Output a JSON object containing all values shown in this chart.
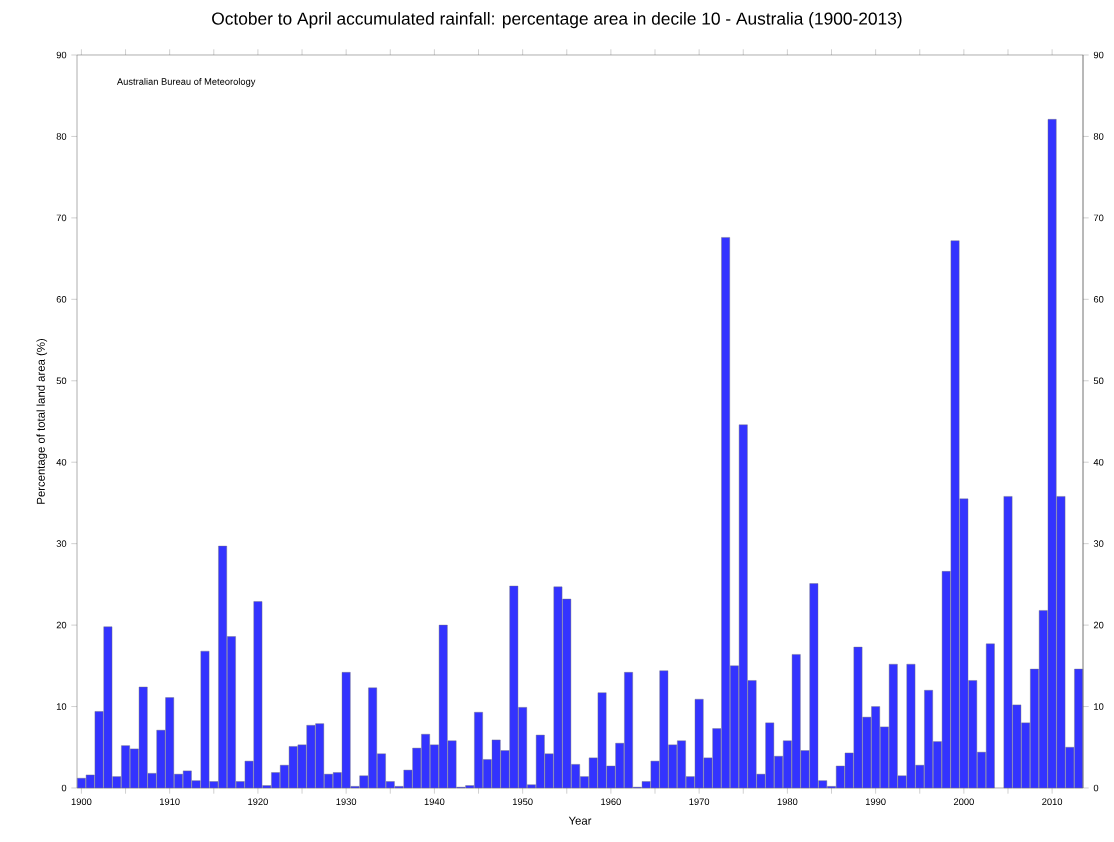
{
  "chart_data": {
    "type": "bar",
    "title": "October to April accumulated rainfall: percentage area in decile 10 - Australia (1900-2013)",
    "xlabel": "Year",
    "ylabel": "Percentage of total land area (%)",
    "annotations": [
      "Australian Bureau of Meteorology"
    ],
    "x": [
      1900,
      1901,
      1902,
      1903,
      1904,
      1905,
      1906,
      1907,
      1908,
      1909,
      1910,
      1911,
      1912,
      1913,
      1914,
      1915,
      1916,
      1917,
      1918,
      1919,
      1920,
      1921,
      1922,
      1923,
      1924,
      1925,
      1926,
      1927,
      1928,
      1929,
      1930,
      1931,
      1932,
      1933,
      1934,
      1935,
      1936,
      1937,
      1938,
      1939,
      1940,
      1941,
      1942,
      1943,
      1944,
      1945,
      1946,
      1947,
      1948,
      1949,
      1950,
      1951,
      1952,
      1953,
      1954,
      1955,
      1956,
      1957,
      1958,
      1959,
      1960,
      1961,
      1962,
      1963,
      1964,
      1965,
      1966,
      1967,
      1968,
      1969,
      1970,
      1971,
      1972,
      1973,
      1974,
      1975,
      1976,
      1977,
      1978,
      1979,
      1980,
      1981,
      1982,
      1983,
      1984,
      1985,
      1986,
      1987,
      1988,
      1989,
      1990,
      1991,
      1992,
      1993,
      1994,
      1995,
      1996,
      1997,
      1998,
      1999,
      2000,
      2001,
      2002,
      2003,
      2004,
      2005,
      2006,
      2007,
      2008,
      2009,
      2010,
      2011,
      2012,
      2013
    ],
    "values": [
      1.2,
      1.6,
      9.4,
      19.8,
      1.4,
      5.2,
      4.8,
      12.4,
      1.8,
      7.1,
      11.1,
      1.7,
      2.1,
      0.9,
      16.8,
      0.8,
      29.7,
      18.6,
      0.8,
      3.3,
      22.9,
      0.3,
      1.9,
      2.8,
      5.1,
      5.3,
      7.7,
      7.9,
      1.7,
      1.9,
      14.2,
      0.2,
      1.5,
      12.3,
      4.2,
      0.8,
      0.2,
      2.2,
      4.9,
      6.6,
      5.3,
      20.0,
      5.8,
      0.1,
      0.3,
      9.3,
      3.5,
      5.9,
      4.6,
      24.8,
      9.9,
      0.4,
      6.5,
      4.2,
      24.7,
      23.2,
      2.9,
      1.4,
      3.7,
      11.7,
      2.7,
      5.5,
      14.2,
      0.1,
      0.8,
      3.3,
      14.4,
      5.3,
      5.8,
      1.4,
      10.9,
      3.7,
      7.3,
      67.6,
      15.0,
      44.6,
      13.2,
      1.7,
      8.0,
      3.9,
      5.8,
      16.4,
      4.6,
      25.1,
      0.9,
      0.2,
      2.7,
      4.3,
      17.3,
      8.7,
      10.0,
      7.5,
      15.2,
      1.5,
      15.2,
      2.8,
      12.0,
      5.7,
      26.6,
      67.2,
      35.5,
      13.2,
      4.4,
      17.7,
      null,
      35.8,
      10.2,
      8.0,
      14.6,
      21.8,
      82.1,
      35.8,
      5.0,
      14.6
    ],
    "color": "#3333ff",
    "xlim": [
      1899.5,
      2013.5
    ],
    "xticks": [
      1900,
      {
        "value": 1905,
        "label": null
      },
      1910,
      {
        "value": 1915,
        "label": null
      },
      1920,
      {
        "value": 1925,
        "label": null
      },
      1930,
      {
        "value": 1935,
        "label": null
      },
      1940,
      {
        "value": 1945,
        "label": null
      },
      1950,
      {
        "value": 1955,
        "label": null
      },
      1960,
      {
        "value": 1965,
        "label": null
      },
      1970,
      {
        "value": 1975,
        "label": null
      },
      1980,
      {
        "value": 1985,
        "label": null
      },
      1990,
      {
        "value": 1995,
        "label": null
      },
      2000,
      {
        "value": 2005,
        "label": null
      },
      2010
    ],
    "ylim": [
      0,
      90
    ],
    "yticks": [
      0,
      10,
      20,
      30,
      40,
      50,
      60,
      70,
      80,
      90
    ],
    "y2lim": [
      0,
      90
    ],
    "y2ticks": [
      0,
      10,
      20,
      30,
      40,
      50,
      60,
      70,
      80,
      90
    ]
  }
}
